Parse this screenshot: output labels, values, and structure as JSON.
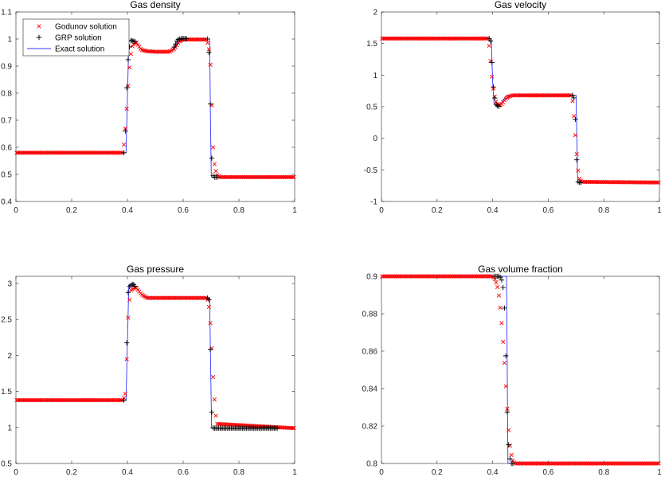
{
  "chart_data": [
    {
      "type": "line",
      "title": "Gas density",
      "xlim": [
        0,
        1
      ],
      "ylim": [
        0.4,
        1.1
      ],
      "xticks": [
        "0",
        "0.2",
        "0.4",
        "0.6",
        "0.8",
        "1"
      ],
      "yticks": [
        "0.4",
        "0.5",
        "0.6",
        "0.7",
        "0.8",
        "0.9",
        "1",
        "1.1"
      ],
      "legend": {
        "position": "top-left",
        "entries": [
          "Godunov solution",
          "GRP solution",
          "Exact solution"
        ]
      },
      "exact": {
        "x": [
          0,
          0.395,
          0.405,
          0.415,
          0.43,
          0.45,
          0.47,
          0.5,
          0.55,
          0.565,
          0.575,
          0.585,
          0.6,
          0.695,
          0.698,
          0.701,
          1
        ],
        "y": [
          0.58,
          0.58,
          0.99,
          1.0,
          0.99,
          0.96,
          0.955,
          0.953,
          0.953,
          0.96,
          0.985,
          1.0,
          1.0,
          1.0,
          0.7,
          0.49,
          0.49
        ]
      },
      "grp_ref": {
        "x": [
          0,
          0.39,
          0.4,
          0.41,
          0.43,
          0.45,
          0.47,
          0.5,
          0.55,
          0.565,
          0.58,
          0.595,
          0.69,
          0.695,
          0.7,
          0.705,
          0.71,
          1
        ],
        "y": [
          0.58,
          0.58,
          0.9,
          0.995,
          0.99,
          0.96,
          0.955,
          0.953,
          0.953,
          0.965,
          0.998,
          1.002,
          1.0,
          0.9,
          0.62,
          0.5,
          0.49,
          0.49
        ]
      },
      "god_ref": {
        "x": [
          0,
          0.385,
          0.395,
          0.405,
          0.415,
          0.43,
          0.45,
          0.47,
          0.5,
          0.55,
          0.57,
          0.585,
          0.6,
          0.685,
          0.695,
          0.7,
          0.705,
          0.71,
          0.72,
          0.73,
          1
        ],
        "y": [
          0.58,
          0.58,
          0.7,
          0.87,
          0.97,
          0.99,
          0.96,
          0.955,
          0.953,
          0.953,
          0.965,
          0.99,
          0.998,
          0.998,
          0.95,
          0.86,
          0.65,
          0.55,
          0.5,
          0.49,
          0.49
        ]
      }
    },
    {
      "type": "line",
      "title": "Gas velocity",
      "xlim": [
        0,
        1
      ],
      "ylim": [
        -1,
        2
      ],
      "xticks": [
        "0",
        "0.2",
        "0.4",
        "0.6",
        "0.8",
        "1"
      ],
      "yticks": [
        "-1",
        "-0.5",
        "0",
        "0.5",
        "1",
        "1.5",
        "2"
      ],
      "exact": {
        "x": [
          0,
          0.395,
          0.4,
          0.405,
          0.415,
          0.43,
          0.45,
          0.47,
          0.7,
          0.703,
          0.706,
          1
        ],
        "y": [
          1.58,
          1.58,
          0.9,
          0.55,
          0.5,
          0.55,
          0.68,
          0.68,
          0.68,
          0.0,
          -0.7,
          -0.7
        ]
      },
      "grp_ref": {
        "x": [
          0,
          0.39,
          0.395,
          0.4,
          0.41,
          0.42,
          0.43,
          0.45,
          0.47,
          0.69,
          0.695,
          0.7,
          0.705,
          0.71,
          1
        ],
        "y": [
          1.58,
          1.58,
          1.5,
          0.9,
          0.55,
          0.5,
          0.52,
          0.65,
          0.68,
          0.68,
          0.6,
          0.0,
          -0.68,
          -0.7,
          -0.7
        ]
      },
      "god_ref": {
        "x": [
          0,
          0.385,
          0.39,
          0.395,
          0.4,
          0.41,
          0.42,
          0.43,
          0.45,
          0.47,
          0.685,
          0.69,
          0.695,
          0.7,
          0.705,
          0.71,
          0.72,
          1
        ],
        "y": [
          1.58,
          1.58,
          1.35,
          1.1,
          0.85,
          0.6,
          0.52,
          0.53,
          0.64,
          0.68,
          0.68,
          0.5,
          0.2,
          -0.1,
          -0.4,
          -0.62,
          -0.69,
          -0.7
        ]
      }
    },
    {
      "type": "line",
      "title": "Gas pressure",
      "xlim": [
        0,
        1
      ],
      "ylim": [
        0.5,
        3.1
      ],
      "xticks": [
        "0",
        "0.2",
        "0.4",
        "0.6",
        "0.8",
        "1"
      ],
      "yticks": [
        "0.5",
        "1",
        "1.5",
        "2",
        "2.5",
        "3"
      ],
      "exact": {
        "x": [
          0,
          0.395,
          0.405,
          0.42,
          0.44,
          0.46,
          0.47,
          0.695,
          0.698,
          0.702,
          1
        ],
        "y": [
          1.38,
          1.38,
          2.98,
          3.0,
          2.9,
          2.81,
          2.8,
          2.8,
          2.0,
          0.99,
          0.99
        ]
      },
      "grp_ref": {
        "x": [
          0,
          0.39,
          0.395,
          0.4,
          0.405,
          0.42,
          0.44,
          0.46,
          0.47,
          0.69,
          0.695,
          0.7,
          0.705,
          0.71,
          1
        ],
        "y": [
          1.38,
          1.38,
          1.55,
          2.8,
          2.95,
          3.0,
          2.9,
          2.81,
          2.8,
          2.8,
          2.75,
          1.42,
          1.0,
          0.99,
          0.99
        ]
      },
      "god_ref": {
        "x": [
          0,
          0.385,
          0.395,
          0.4,
          0.41,
          0.43,
          0.45,
          0.47,
          0.685,
          0.69,
          0.695,
          0.7,
          0.705,
          0.71,
          0.72,
          1
        ],
        "y": [
          1.38,
          1.38,
          1.5,
          2.4,
          2.9,
          2.95,
          2.85,
          2.8,
          2.8,
          2.75,
          2.6,
          2.3,
          1.9,
          1.5,
          1.05,
          0.99
        ]
      }
    },
    {
      "type": "line",
      "title": "Gas volume fraction",
      "xlim": [
        0,
        1
      ],
      "ylim": [
        0.8,
        0.9
      ],
      "xticks": [
        "0",
        "0.2",
        "0.4",
        "0.6",
        "0.8",
        "1"
      ],
      "yticks": [
        "0.8",
        "0.82",
        "0.84",
        "0.86",
        "0.88",
        "0.9"
      ],
      "exact": {
        "x": [
          0,
          0.45,
          0.455,
          1
        ],
        "y": [
          0.9,
          0.9,
          0.8,
          0.8
        ]
      },
      "grp_ref": {
        "x": [
          0,
          0.425,
          0.43,
          0.435,
          0.44,
          0.445,
          0.45,
          0.455,
          0.46,
          0.465,
          1
        ],
        "y": [
          0.9,
          0.9,
          0.899,
          0.897,
          0.891,
          0.875,
          0.84,
          0.815,
          0.805,
          0.8,
          0.8
        ]
      },
      "god_ref": {
        "x": [
          0,
          0.4,
          0.41,
          0.42,
          0.43,
          0.44,
          0.45,
          0.46,
          0.47,
          0.48,
          1
        ],
        "y": [
          0.9,
          0.9,
          0.898,
          0.893,
          0.88,
          0.86,
          0.835,
          0.812,
          0.802,
          0.8,
          0.8
        ]
      }
    }
  ]
}
